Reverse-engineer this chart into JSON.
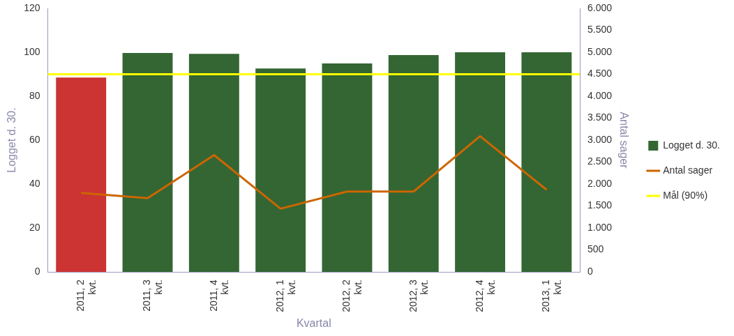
{
  "chart_data": {
    "type": "bar",
    "xlabel": "Kvartal",
    "ylabel": "Logget d. 30.",
    "y2label": "Antal sager",
    "categories": [
      "2011, 2 kvt.",
      "2011, 3 kvt.",
      "2011, 4 kvt.",
      "2012, 1 kvt.",
      "2012, 2 kvt.",
      "2012, 3 kvt.",
      "2012, 4 kvt.",
      "2013, 1 kvt."
    ],
    "series": [
      {
        "name": "Logget d. 30.",
        "color": "#336633",
        "colors": [
          "#cc3333",
          "#336633",
          "#336633",
          "#336633",
          "#336633",
          "#336633",
          "#336633",
          "#336633"
        ],
        "values": [
          88.5,
          99.7,
          99.3,
          92.6,
          94.9,
          98.7,
          100,
          100
        ]
      },
      {
        "name": "Antal sager",
        "type": "line",
        "axis": "y2",
        "color": "#cc6600",
        "values": [
          1800,
          1680,
          2660,
          1440,
          1830,
          1830,
          3090,
          1870
        ]
      }
    ],
    "ref_lines": [
      {
        "axis": "y",
        "value": 90,
        "label": "Mål (90%)",
        "color": "#ffff00"
      }
    ],
    "ylim": [
      0,
      120
    ],
    "yticks": [
      0,
      20,
      40,
      60,
      80,
      100,
      120
    ],
    "y2lim": [
      0,
      6000
    ],
    "y2ticks": [
      0,
      500,
      {
        "value": 1000,
        "label": "1.000"
      },
      {
        "value": 1500,
        "label": "1.500"
      },
      {
        "value": 2000,
        "label": "2.000"
      },
      {
        "value": 2500,
        "label": "2.500"
      },
      {
        "value": 3000,
        "label": "3.000"
      },
      {
        "value": 3500,
        "label": "3.500"
      },
      {
        "value": 4000,
        "label": "4.000"
      },
      {
        "value": 4500,
        "label": "4.500"
      },
      {
        "value": 5000,
        "label": "5.000"
      },
      {
        "value": 5500,
        "label": "5.500"
      },
      {
        "value": 6000,
        "label": "6.000"
      }
    ],
    "grid": false,
    "legend": "right",
    "marker": "none",
    "line_style": "solid"
  }
}
